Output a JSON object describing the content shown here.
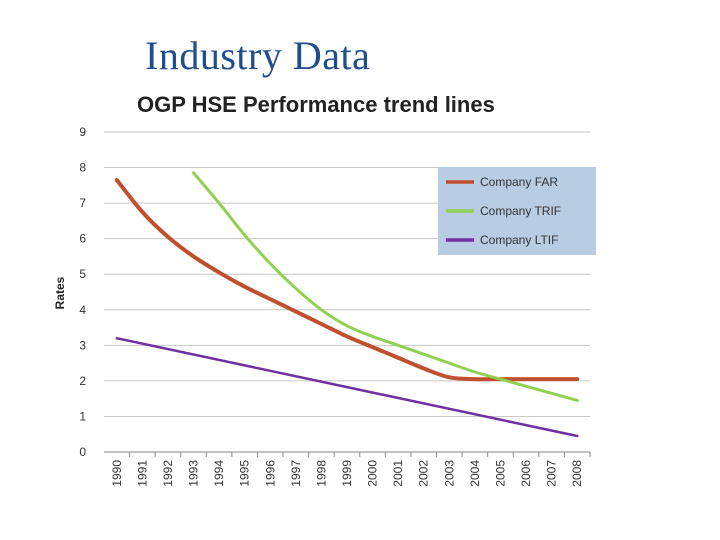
{
  "slide": {
    "title": "Industry Data"
  },
  "chart_data": {
    "type": "line",
    "title": "OGP HSE Performance trend lines",
    "xlabel": "",
    "ylabel": "Rates",
    "ylim": [
      0,
      9
    ],
    "yticks": [
      "0",
      "1",
      "2",
      "3",
      "4",
      "5",
      "6",
      "7",
      "8",
      "9"
    ],
    "categories": [
      "1990",
      "1991",
      "1992",
      "1993",
      "1994",
      "1995",
      "1996",
      "1997",
      "1998",
      "1999",
      "2000",
      "2001",
      "2002",
      "2003",
      "2004",
      "2005",
      "2006",
      "2007",
      "2008"
    ],
    "grid": true,
    "legend_position": "top-right",
    "series": [
      {
        "name": "Company FAR",
        "color": "#c0502d",
        "x": [
          1990,
          1991,
          1992,
          1993,
          1994,
          1995,
          1996,
          1997,
          1998,
          1999,
          2000,
          2001,
          2002,
          2003,
          2004,
          2005,
          2006,
          2007,
          2008
        ],
        "values": [
          7.65,
          6.75,
          6.05,
          5.5,
          5.05,
          4.65,
          4.3,
          3.95,
          3.6,
          3.25,
          2.95,
          2.65,
          2.35,
          2.1,
          2.05,
          2.05,
          2.05,
          2.05,
          2.05
        ]
      },
      {
        "name": "Company TRIF",
        "color": "#92d050",
        "x": [
          1993,
          1994,
          1995,
          1996,
          1997,
          1998,
          1999,
          2000,
          2001,
          2002,
          2003,
          2004,
          2005,
          2006,
          2007,
          2008
        ],
        "values": [
          7.85,
          7.0,
          6.1,
          5.3,
          4.6,
          4.0,
          3.55,
          3.25,
          3.0,
          2.75,
          2.5,
          2.25,
          2.05,
          1.85,
          1.65,
          1.45
        ]
      },
      {
        "name": "Company LTIF",
        "color": "#7030a0",
        "x": [
          1990,
          2008
        ],
        "values": [
          3.2,
          0.45
        ]
      }
    ]
  }
}
